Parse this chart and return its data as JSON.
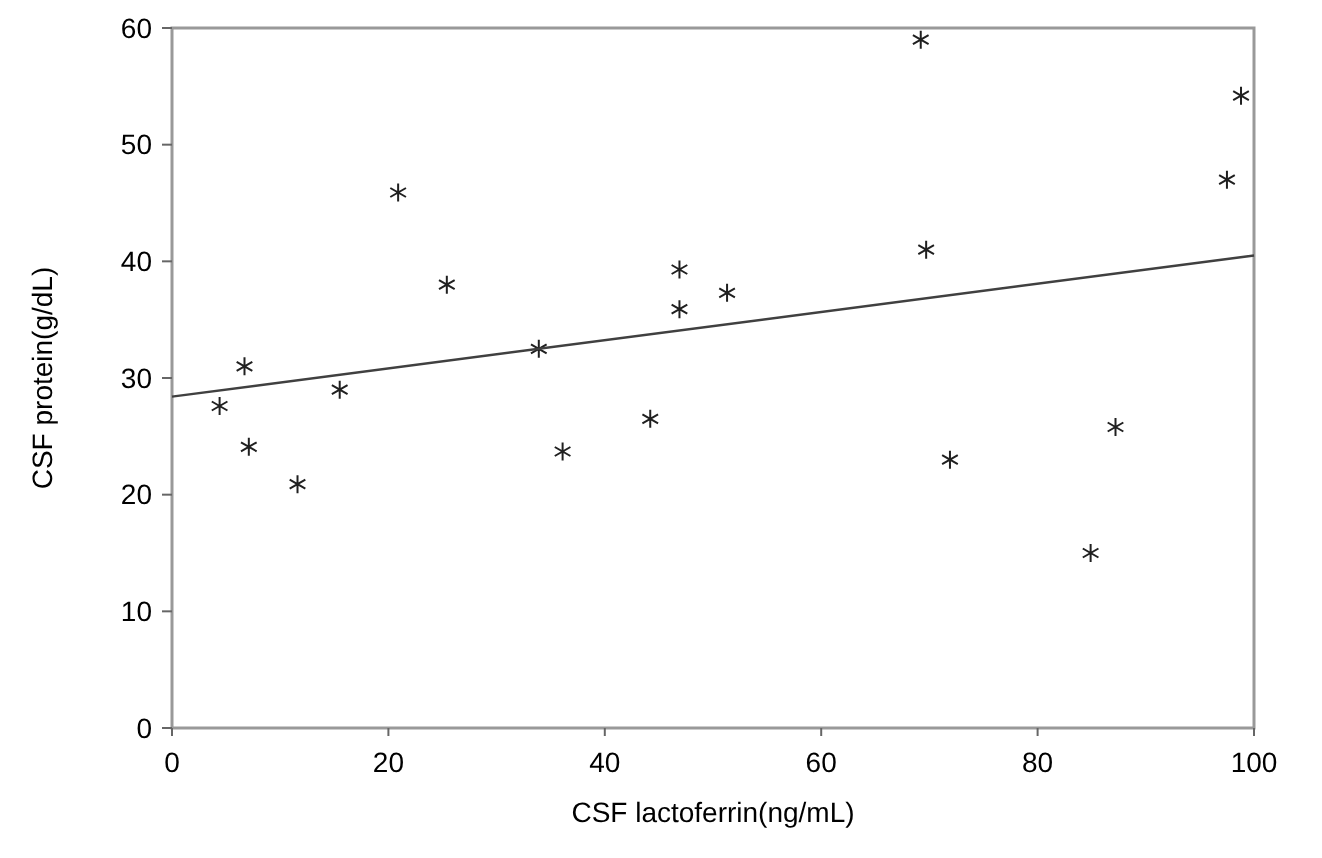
{
  "chart_data": {
    "type": "scatter",
    "xlabel": "CSF lactoferrin(ng/mL)",
    "ylabel": "CSF protein(g/dL)",
    "xlim": [
      0,
      100
    ],
    "ylim": [
      0,
      60
    ],
    "xticks": [
      0,
      20,
      40,
      60,
      80,
      100
    ],
    "yticks": [
      0,
      10,
      20,
      30,
      40,
      50,
      60
    ],
    "grid": false,
    "series": [
      {
        "marker": "cross",
        "color": "#202020",
        "x": [
          4.4,
          6.7,
          7.1,
          11.6,
          15.5,
          20.9,
          25.4,
          33.9,
          36.1,
          44.2,
          46.9,
          46.9,
          51.3,
          69.2,
          69.7,
          71.9,
          84.9,
          87.2,
          97.5,
          98.8
        ],
        "values": [
          27.6,
          31.0,
          24.1,
          20.9,
          29.0,
          45.9,
          38.0,
          32.5,
          23.7,
          26.5,
          39.3,
          35.9,
          37.3,
          59.0,
          41.0,
          23.0,
          15.0,
          25.8,
          47.0,
          54.2
        ]
      },
      {
        "type": "line",
        "color": "#404040",
        "x": [
          0,
          100
        ],
        "values": [
          28.4,
          40.5
        ]
      }
    ]
  }
}
